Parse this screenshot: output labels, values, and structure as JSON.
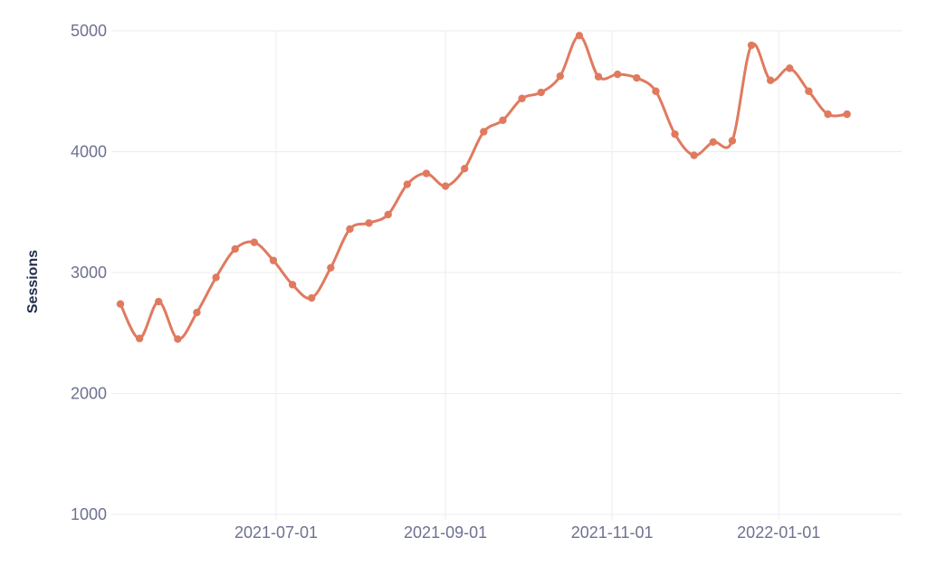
{
  "chart_data": {
    "type": "line",
    "title": "",
    "xlabel": "",
    "ylabel": "Sessions",
    "ylim": [
      1000,
      5000
    ],
    "xlim": [
      "2021-05-05",
      "2022-02-15"
    ],
    "yticks": [
      1000,
      2000,
      3000,
      4000,
      5000
    ],
    "xticks": [
      "2021-07-01",
      "2021-09-01",
      "2021-11-01",
      "2022-01-01"
    ],
    "grid": true,
    "legend": "none",
    "series": [
      {
        "color": "#e07a5f",
        "x": [
          "2021-05-05",
          "2021-05-12",
          "2021-05-19",
          "2021-05-26",
          "2021-06-02",
          "2021-06-09",
          "2021-06-16",
          "2021-06-23",
          "2021-06-30",
          "2021-07-07",
          "2021-07-14",
          "2021-07-21",
          "2021-07-28",
          "2021-08-04",
          "2021-08-11",
          "2021-08-18",
          "2021-08-25",
          "2021-09-01",
          "2021-09-08",
          "2021-09-15",
          "2021-09-22",
          "2021-09-29",
          "2021-10-06",
          "2021-10-13",
          "2021-10-20",
          "2021-10-27",
          "2021-11-03",
          "2021-11-10",
          "2021-11-17",
          "2021-11-24",
          "2021-12-01",
          "2021-12-08",
          "2021-12-15",
          "2021-12-22",
          "2021-12-29",
          "2022-01-05",
          "2022-01-12",
          "2022-01-19",
          "2022-01-26"
        ],
        "y": [
          2740,
          2455,
          2760,
          2450,
          2670,
          2960,
          3195,
          3250,
          3100,
          2900,
          2790,
          3040,
          3360,
          3410,
          3480,
          3730,
          3820,
          3715,
          3860,
          4165,
          4260,
          4440,
          4490,
          4625,
          4960,
          4620,
          4640,
          4610,
          4500,
          4145,
          3970,
          4080,
          4090,
          4880,
          4590,
          4690,
          4500,
          4310,
          4310
        ]
      }
    ]
  }
}
